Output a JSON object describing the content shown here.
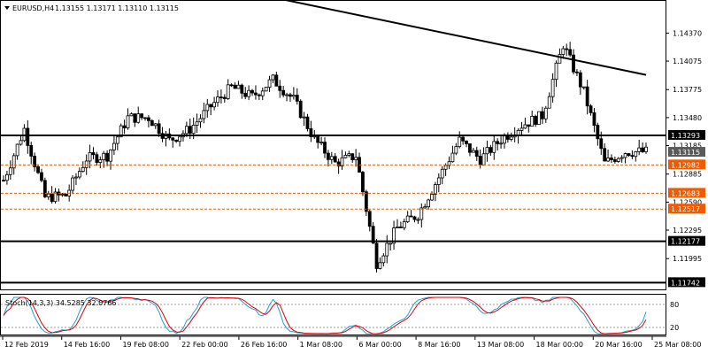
{
  "header": {
    "symbol": "EURUSD,H4",
    "ohlc": "1.13155 1.13171 1.13110 1.13115"
  },
  "indicator": {
    "label": "Stoch(14,3,3) 34.5285 32.0766",
    "levels": [
      "80",
      "20"
    ]
  },
  "colors": {
    "background": "#ffffff",
    "bull_fill": "#ffffff",
    "candle_outline": "#000000",
    "bear_candle": "#000000",
    "horizontal_level": "#000000",
    "dashed_level": "#f05a00",
    "badge_orange": "#f05a00",
    "badge_current": "#5a5a5a",
    "stoch_main": "#1ea0d8",
    "stoch_signal": "#e00000"
  },
  "chart_data": [
    {
      "type": "candlestick",
      "instrument": "EURUSD",
      "timeframe": "H4",
      "price_ticks": [
        "1.14370",
        "1.14075",
        "1.13775",
        "1.13480",
        "1.13185",
        "1.12885",
        "1.12590",
        "1.12295",
        "1.11995"
      ],
      "x_ticks": [
        "12 Feb 2019",
        "14 Feb 16:00",
        "19 Feb 08:00",
        "22 Feb 00:00",
        "26 Feb 16:00",
        "1 Mar 08:00",
        "6 Mar 00:00",
        "8 Mar 16:00",
        "13 Mar 08:00",
        "18 Mar 00:00",
        "20 Mar 16:00",
        "25 Mar 08:00"
      ],
      "y_range": [
        1.1168,
        1.147
      ],
      "horizontal_levels": [
        {
          "price": 1.13293,
          "label": "1.13293",
          "style": "solid"
        },
        {
          "price": 1.12177,
          "label": "1.12177",
          "style": "solid"
        },
        {
          "price": 1.11742,
          "label": "1.11742",
          "style": "solid"
        }
      ],
      "dashed_levels": [
        {
          "price": 1.12982,
          "label": "1.12982"
        },
        {
          "price": 1.12683,
          "label": "1.12683"
        },
        {
          "price": 1.12517,
          "label": "1.12517"
        }
      ],
      "current_price": {
        "price": 1.13115,
        "label": "1.13115"
      },
      "trendline": [
        {
          "date": "12 Feb 2019",
          "price": 1.1529
        },
        {
          "date": "26 Mar 2019",
          "price": 1.1393
        }
      ],
      "close_path": [
        {
          "date": "11 Feb 2019",
          "price": 1.1282
        },
        {
          "date": "12 Feb 2019",
          "price": 1.1336
        },
        {
          "date": "13 Feb 2019",
          "price": 1.1264
        },
        {
          "date": "14 Feb 2019",
          "price": 1.1266
        },
        {
          "date": "15 Feb 2019",
          "price": 1.1305
        },
        {
          "date": "18 Feb 2019",
          "price": 1.1308
        },
        {
          "date": "19 Feb 2019",
          "price": 1.1348
        },
        {
          "date": "20 Feb 2019",
          "price": 1.1348
        },
        {
          "date": "21 Feb 2019",
          "price": 1.1324
        },
        {
          "date": "22 Feb 2019",
          "price": 1.1336
        },
        {
          "date": "25 Feb 2019",
          "price": 1.136
        },
        {
          "date": "26 Feb 2019",
          "price": 1.138
        },
        {
          "date": "27 Feb 2019",
          "price": 1.137
        },
        {
          "date": "28 Feb 2019",
          "price": 1.1388
        },
        {
          "date": "1 Mar 2019",
          "price": 1.1367
        },
        {
          "date": "4 Mar 2019",
          "price": 1.1325
        },
        {
          "date": "5 Mar 2019",
          "price": 1.13
        },
        {
          "date": "6 Mar 2019",
          "price": 1.1308
        },
        {
          "date": "7 Mar 2019",
          "price": 1.1195
        },
        {
          "date": "8 Mar 2019",
          "price": 1.1232
        },
        {
          "date": "11 Mar 2019",
          "price": 1.1246
        },
        {
          "date": "12 Mar 2019",
          "price": 1.1285
        },
        {
          "date": "13 Mar 2019",
          "price": 1.1324
        },
        {
          "date": "14 Mar 2019",
          "price": 1.1304
        },
        {
          "date": "15 Mar 2019",
          "price": 1.1325
        },
        {
          "date": "18 Mar 2019",
          "price": 1.134
        },
        {
          "date": "19 Mar 2019",
          "price": 1.135
        },
        {
          "date": "20 Mar 2019",
          "price": 1.1425
        },
        {
          "date": "21 Mar 2019",
          "price": 1.1375
        },
        {
          "date": "22 Mar 2019",
          "price": 1.13
        },
        {
          "date": "25 Mar 2019",
          "price": 1.1312
        }
      ],
      "stochastic": {
        "main": 34.5285,
        "signal": 32.0766,
        "range": [
          0,
          100
        ]
      }
    }
  ]
}
